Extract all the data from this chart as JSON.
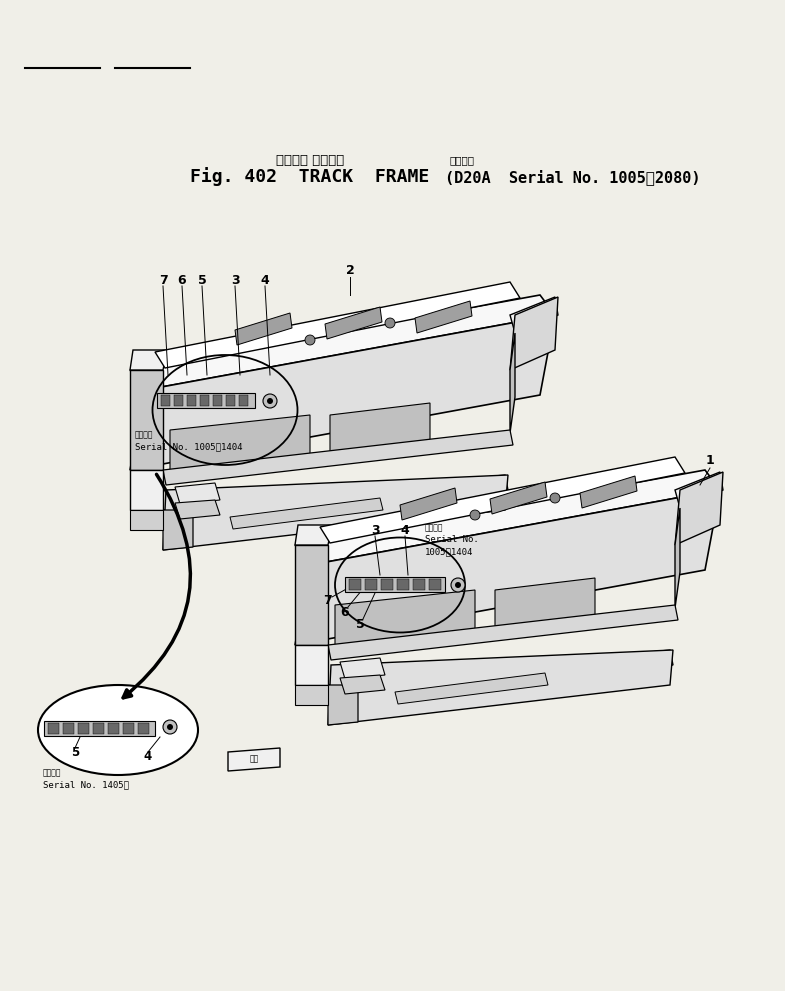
{
  "bg_color": "#f0efe8",
  "title_jp": "トラック フレーム",
  "title_en": "Fig. 402  TRACK  FRAME",
  "title_serial_jp": "適用号機",
  "title_serial": "(D20A  Serial No. 1005～2080)",
  "serial1_jp": "適用号機",
  "serial1": "Serial No. 1005～1404",
  "serial2_jp": "適用号機",
  "serial2_l1": "Serial No.",
  "serial2_l2": "1005～1404",
  "serial3_jp": "適用号機",
  "serial3": "Serial No. 1405～"
}
